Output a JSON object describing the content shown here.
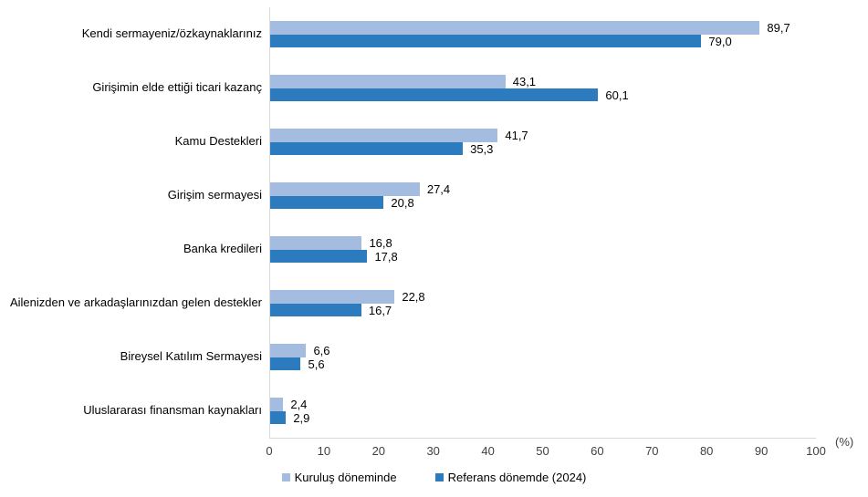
{
  "chart_data": {
    "type": "bar",
    "orientation": "horizontal",
    "title": "",
    "xlabel": "",
    "ylabel": "",
    "unit_label": "(%)",
    "xlim": [
      0,
      100
    ],
    "xticks": [
      0,
      10,
      20,
      30,
      40,
      50,
      60,
      70,
      80,
      90,
      100
    ],
    "grid": false,
    "legend_position": "bottom",
    "categories": [
      "Kendi sermayeniz/özkaynaklarınız",
      "Girişimin elde ettiği ticari kazanç",
      "Kamu Destekleri",
      "Girişim sermayesi",
      "Banka kredileri",
      "Ailenizden ve arkadaşlarınızdan gelen destekler",
      "Bireysel Katılım Sermayesi",
      "Uluslararası finansman kaynakları"
    ],
    "series": [
      {
        "name": "Kuruluş döneminde",
        "color": "#a4bce0",
        "values": [
          89.7,
          43.1,
          41.7,
          27.4,
          16.8,
          22.8,
          6.6,
          2.4
        ],
        "labels": [
          "89,7",
          "43,1",
          "41,7",
          "27,4",
          "16,8",
          "22,8",
          "6,6",
          "2,4"
        ]
      },
      {
        "name": "Referans dönemde (2024)",
        "color": "#2b7bbe",
        "values": [
          79.0,
          60.1,
          35.3,
          20.8,
          17.8,
          16.7,
          5.6,
          2.9
        ],
        "labels": [
          "79,0",
          "60,1",
          "35,3",
          "20,8",
          "17,8",
          "16,7",
          "5,6",
          "2,9"
        ]
      }
    ],
    "colors": {
      "axis_line": "#d9d9d9",
      "tick_text": "#404040",
      "label_text": "#000000"
    }
  }
}
